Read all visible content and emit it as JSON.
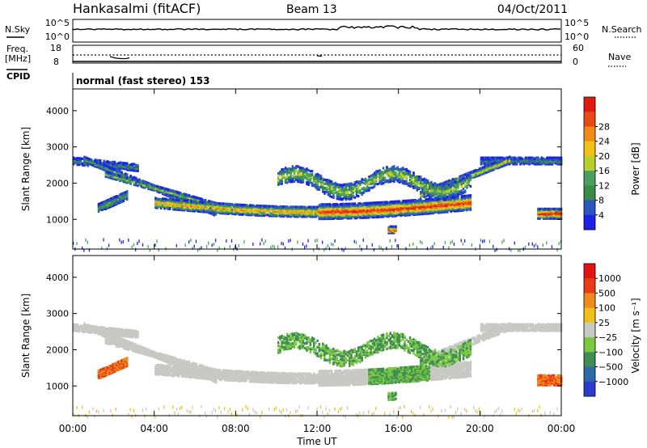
{
  "header": {
    "station": "Hankasalmi (fitACF)",
    "beam": "Beam 13",
    "date": "04/Oct/2011"
  },
  "top_panels": {
    "nsky_label": "N.Sky",
    "nsky_tick_top": "10^5",
    "nsky_tick_bottom": "10^0",
    "nsearch_label": "N.Search",
    "nsearch_tick_top": "10^5",
    "nsearch_tick_bottom": "10^0",
    "freq_label_line1": "Freq.",
    "freq_label_line2": "[MHz]",
    "freq_tick_top": "18",
    "freq_tick_bottom": "8",
    "nave_label": "Nave",
    "nave_tick_top": "60",
    "nave_tick_bottom": "0",
    "cpid_label": "CPID",
    "cpid_text": "normal (fast stereo) 153"
  },
  "chart_data": {
    "type": "heatmap",
    "x_tick_labels": [
      "00:00",
      "04:00",
      "08:00",
      "12:00",
      "16:00",
      "20:00",
      "00:00"
    ],
    "x_ticks_hours": [
      0,
      4,
      8,
      12,
      16,
      20,
      24
    ],
    "xlabel": "Time UT",
    "xlim_hours": [
      0,
      24
    ],
    "ylabel": "Slant Range [km]",
    "ylim_km": [
      180,
      4600
    ],
    "y_ticks": [
      1000,
      2000,
      3000,
      4000
    ],
    "panels": [
      {
        "name": "power",
        "colorbar_label": "Power [dB]",
        "colorbar_ticks": [
          "4",
          "8",
          "12",
          "16",
          "20",
          "24",
          "28"
        ],
        "colors": [
          "#1e22e6",
          "#2c57c0",
          "#3a8a4a",
          "#48a060",
          "#b6cf2c",
          "#f2c218",
          "#f08a18",
          "#e84a14",
          "#e01a10"
        ]
      },
      {
        "name": "velocity",
        "colorbar_label": "Velocity [m s⁻¹]",
        "colorbar_ticks": [
          "1000",
          "500",
          "100",
          "25",
          "−25",
          "−100",
          "−500",
          "−1000"
        ],
        "colors": [
          "#2b3ccb",
          "#2e6aa8",
          "#3f8c55",
          "#7bc842",
          "#c8c8c4",
          "#f0c018",
          "#ef8a1c",
          "#e83c16",
          "#e01410"
        ]
      }
    ]
  }
}
